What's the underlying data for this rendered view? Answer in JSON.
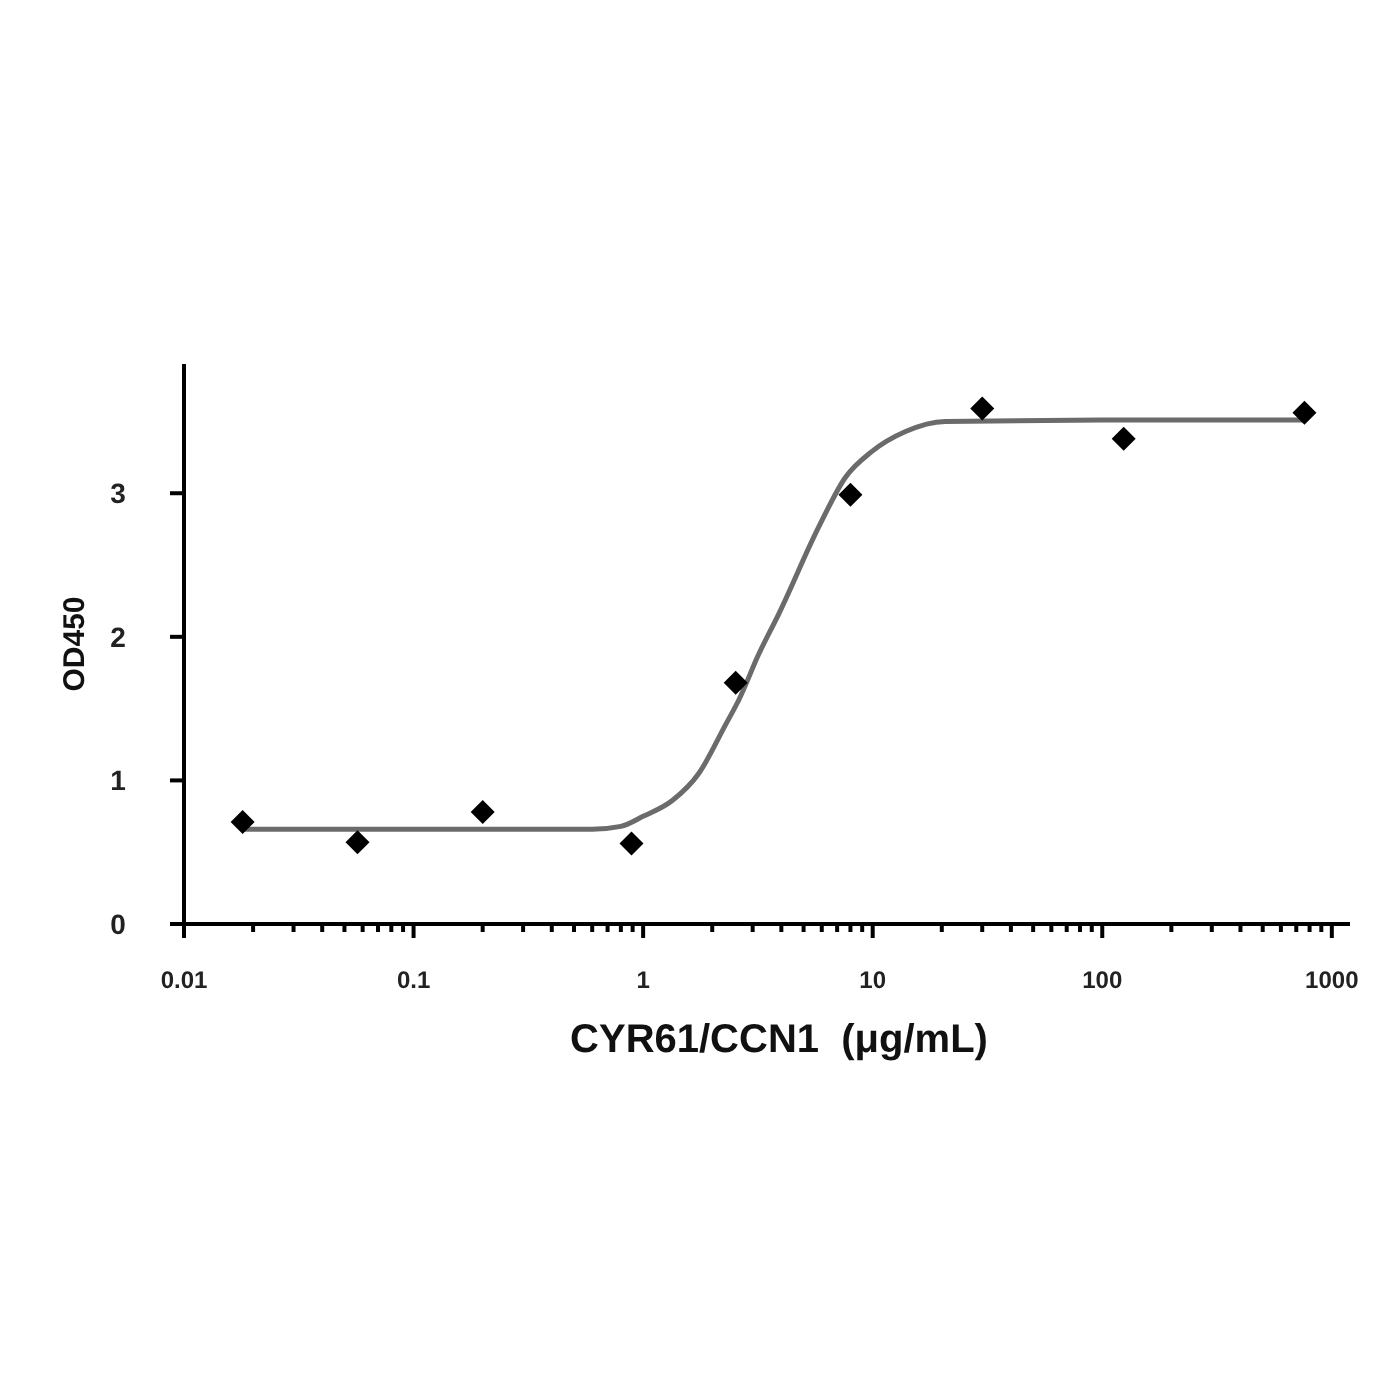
{
  "chart_data": {
    "type": "scatter",
    "xlabel": "CYR61/CCN1  (μg/mL)",
    "ylabel": "OD450",
    "log": "x",
    "xlim": [
      0.01,
      1200
    ],
    "ylim": [
      0,
      3.9
    ],
    "xticks": [
      0.01,
      {
        "value": 0.02,
        "label": null
      },
      {
        "value": 0.03,
        "label": null
      },
      {
        "value": 0.04,
        "label": null
      },
      {
        "value": 0.05,
        "label": null
      },
      {
        "value": 0.06,
        "label": null
      },
      {
        "value": 0.07,
        "label": null
      },
      {
        "value": 0.08,
        "label": null
      },
      {
        "value": 0.09,
        "label": null
      },
      0.1,
      {
        "value": 0.2,
        "label": null
      },
      {
        "value": 0.3,
        "label": null
      },
      {
        "value": 0.4,
        "label": null
      },
      {
        "value": 0.5,
        "label": null
      },
      {
        "value": 0.6,
        "label": null
      },
      {
        "value": 0.7,
        "label": null
      },
      {
        "value": 0.8,
        "label": null
      },
      {
        "value": 0.9,
        "label": null
      },
      1,
      {
        "value": 2,
        "label": null
      },
      {
        "value": 3,
        "label": null
      },
      {
        "value": 4,
        "label": null
      },
      {
        "value": 5,
        "label": null
      },
      {
        "value": 6,
        "label": null
      },
      {
        "value": 7,
        "label": null
      },
      {
        "value": 8,
        "label": null
      },
      {
        "value": 9,
        "label": null
      },
      10,
      {
        "value": 20,
        "label": null
      },
      {
        "value": 30,
        "label": null
      },
      {
        "value": 40,
        "label": null
      },
      {
        "value": 50,
        "label": null
      },
      {
        "value": 60,
        "label": null
      },
      {
        "value": 70,
        "label": null
      },
      {
        "value": 80,
        "label": null
      },
      {
        "value": 90,
        "label": null
      },
      100,
      {
        "value": 200,
        "label": null
      },
      {
        "value": 300,
        "label": null
      },
      {
        "value": 400,
        "label": null
      },
      {
        "value": 500,
        "label": null
      },
      {
        "value": 600,
        "label": null
      },
      {
        "value": 700,
        "label": null
      },
      {
        "value": 800,
        "label": null
      },
      {
        "value": 900,
        "label": null
      },
      1000
    ],
    "yticks": [
      0,
      1,
      2,
      3
    ],
    "series": [
      {
        "type": "line",
        "color": "#6b6b6b",
        "marker": "none",
        "line_style": "solid",
        "x": [
          0.018,
          0.05,
          0.2,
          0.6,
          0.8,
          1,
          1.34,
          1.75,
          2.29,
          2.61,
          3.19,
          3.9,
          5.8,
          7.6,
          9.9,
          13.9,
          20.7,
          100,
          760
        ],
        "values": [
          0.66,
          0.66,
          0.66,
          0.66,
          0.68,
          0.75,
          0.86,
          1.05,
          1.39,
          1.56,
          1.88,
          2.16,
          2.76,
          3.11,
          3.29,
          3.43,
          3.5,
          3.51,
          3.51
        ]
      },
      {
        "color": "#000000",
        "marker": "diamond",
        "x": [
          0.018,
          0.057,
          0.2,
          0.89,
          2.53,
          8,
          30,
          124,
          760
        ],
        "values": [
          0.71,
          0.57,
          0.78,
          0.56,
          1.68,
          2.99,
          3.59,
          3.38,
          3.56
        ]
      }
    ]
  }
}
